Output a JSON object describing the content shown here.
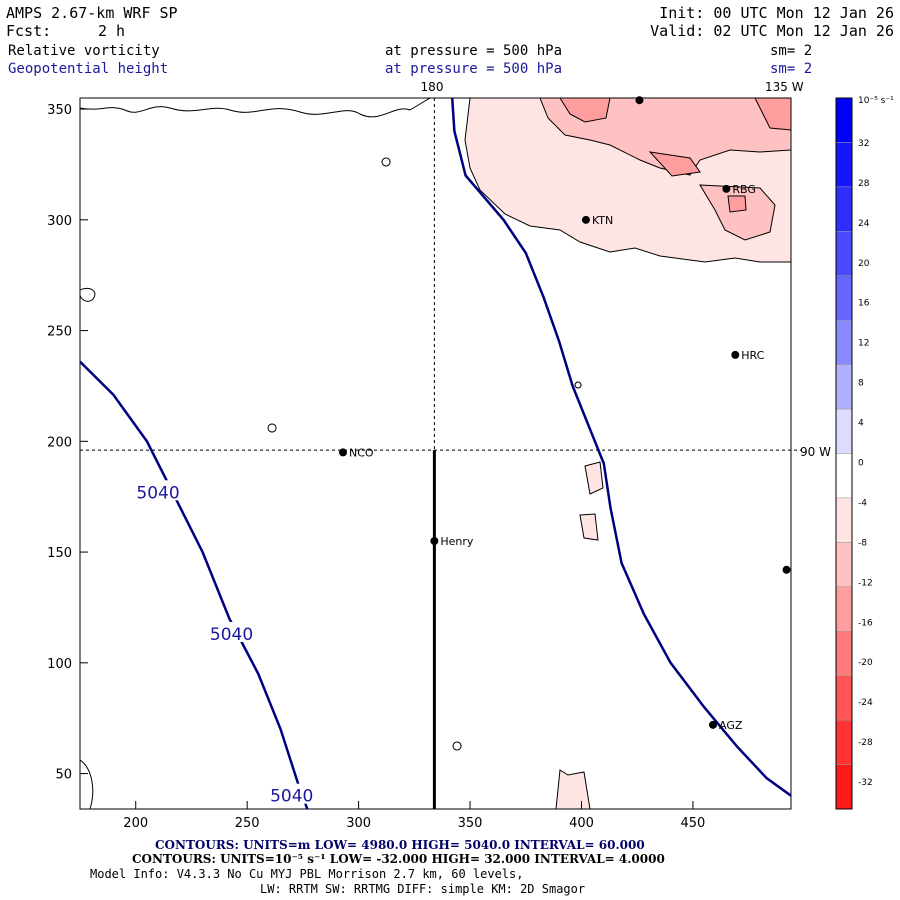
{
  "header": {
    "model": "AMPS 2.67-km WRF SP",
    "forecast_label": "Fcst:",
    "forecast_value": "2 h",
    "init": "Init: 00 UTC Mon 12 Jan 26",
    "valid": "Valid: 02 UTC Mon 12 Jan 26",
    "field1_name": "Relative vorticity",
    "field1_level": "at pressure =  500 hPa",
    "field1_sm": "sm= 2",
    "field2_name": "Geopotential height",
    "field2_level": "at pressure =  500 hPa",
    "field2_sm": "sm= 2"
  },
  "map": {
    "lon_label_top": "180",
    "lon_label_top_right": "135 W",
    "lon_label_right": "90 W",
    "x_ticks": [
      200,
      250,
      300,
      350,
      400,
      450
    ],
    "y_ticks": [
      50,
      100,
      150,
      200,
      250,
      300,
      350
    ],
    "x_range": [
      175,
      494
    ],
    "y_range": [
      34,
      355
    ],
    "graticule": {
      "meridian_x": 334,
      "parallel_y": 196
    },
    "cross_section": {
      "x": 334,
      "y_from": 34,
      "y_to": 196
    },
    "contour_label": "5040",
    "stations": [
      {
        "id": "NCO",
        "label": "NCO",
        "x": 293,
        "y": 195
      },
      {
        "id": "henry",
        "label": "Henry",
        "x": 334,
        "y": 155
      },
      {
        "id": "KTN",
        "label": "KTN",
        "x": 402,
        "y": 300
      },
      {
        "id": "RBG",
        "label": "RBG",
        "x": 465,
        "y": 314
      },
      {
        "id": "HRC",
        "label": "HRC",
        "x": 469,
        "y": 239
      },
      {
        "id": "AGZ",
        "label": "AGZ",
        "x": 459,
        "y": 72
      },
      {
        "id": "edge",
        "label": "",
        "x": 492,
        "y": 142
      },
      {
        "id": "top",
        "label": "",
        "x": 426,
        "y": 354
      }
    ],
    "height_contours": [
      {
        "value": 5040,
        "points": [
          [
            175,
            236
          ],
          [
            190,
            221
          ],
          [
            205,
            200
          ],
          [
            215,
            180
          ],
          [
            230,
            150
          ],
          [
            242,
            120
          ],
          [
            255,
            95
          ],
          [
            265,
            70
          ],
          [
            273,
            45
          ],
          [
            277,
            34
          ]
        ]
      },
      {
        "value": 5040,
        "points": [
          [
            342,
            355
          ],
          [
            343,
            340
          ],
          [
            348,
            320
          ],
          [
            365,
            300
          ],
          [
            375,
            285
          ],
          [
            383,
            265
          ],
          [
            390,
            245
          ],
          [
            396,
            225
          ],
          [
            404,
            205
          ],
          [
            410,
            190
          ],
          [
            413,
            170
          ],
          [
            418,
            145
          ],
          [
            428,
            122
          ],
          [
            440,
            100
          ],
          [
            455,
            80
          ],
          [
            470,
            62
          ],
          [
            483,
            48
          ],
          [
            494,
            40
          ]
        ]
      }
    ],
    "height_labels": [
      {
        "text": "5040",
        "x": 210,
        "y": 177
      },
      {
        "text": "5040",
        "x": 243,
        "y": 113
      },
      {
        "text": "5040",
        "x": 270,
        "y": 40
      }
    ]
  },
  "colorbar": {
    "unit": "10⁻⁵ s⁻¹",
    "labels": [
      "32",
      "28",
      "24",
      "20",
      "16",
      "12",
      "8",
      "4",
      "0",
      "-4",
      "-8",
      "-12",
      "-16",
      "-20",
      "-24",
      "-28",
      "-32"
    ],
    "colors": [
      "#0000ff",
      "#1414ff",
      "#2e2eff",
      "#4a4aff",
      "#6666ff",
      "#8a8aff",
      "#b0b0ff",
      "#dcdcff",
      "#ffffff",
      "#ffe4e4",
      "#ffc2c2",
      "#ff9e9e",
      "#ff7a7a",
      "#ff5555",
      "#ff3333",
      "#ff1a1a",
      "#ff0000"
    ]
  },
  "footer": {
    "line1": "CONTOURS:  UNITS=m  LOW=  4980.0      HIGH=  5040.0      INTERVAL=   60.000",
    "line2": "CONTOURS:  UNITS=10⁻⁵ s⁻¹  LOW=  -32.000      HIGH=  32.000      INTERVAL=   4.0000",
    "line3": "Model Info: V4.3.3    No Cu    MYJ PBL   Morrison          2.7 km,  60 levels,",
    "line4": "LW: RRTM SW: RRTMG    DIFF: simple KM: 2D Smagor"
  }
}
